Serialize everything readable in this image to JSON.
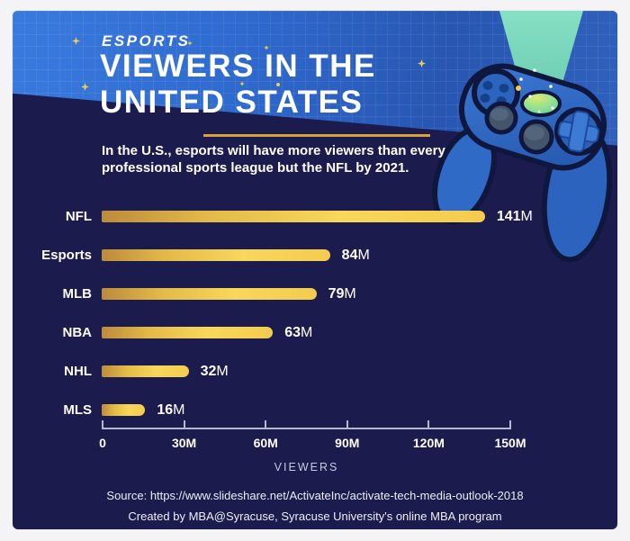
{
  "header": {
    "kicker": "ESPORTS",
    "title_line1": "VIEWERS IN THE",
    "title_line2": "UNITED STATES",
    "subtitle": "In the U.S., esports will have more viewers than every professional sports league but the NFL by 2021.",
    "accent_color": "#d4a13c"
  },
  "illustration": {
    "name": "game-controller-with-light-beam"
  },
  "chart_data": {
    "type": "bar",
    "orientation": "horizontal",
    "categories": [
      "NFL",
      "Esports",
      "MLB",
      "NBA",
      "NHL",
      "MLS"
    ],
    "values": [
      141,
      84,
      79,
      63,
      32,
      16
    ],
    "value_labels": [
      "141M",
      "84M",
      "79M",
      "63M",
      "32M",
      "16M"
    ],
    "value_suffix": "M",
    "x_ticks": [
      "0",
      "30M",
      "60M",
      "90M",
      "120M",
      "150M"
    ],
    "x_tick_values": [
      0,
      30,
      60,
      90,
      120,
      150
    ],
    "xlim": [
      0,
      150
    ],
    "xlabel": "VIEWERS",
    "grid": false,
    "bar_color_start": "#bd8b3c",
    "bar_color_end": "#f8d75a",
    "background_color": "#1c1b4e"
  },
  "footer": {
    "source": "Source: https://www.slideshare.net/ActivateInc/activate-tech-media-outlook-2018",
    "credit": "Created by MBA@Syracuse, Syracuse University's online MBA program"
  }
}
